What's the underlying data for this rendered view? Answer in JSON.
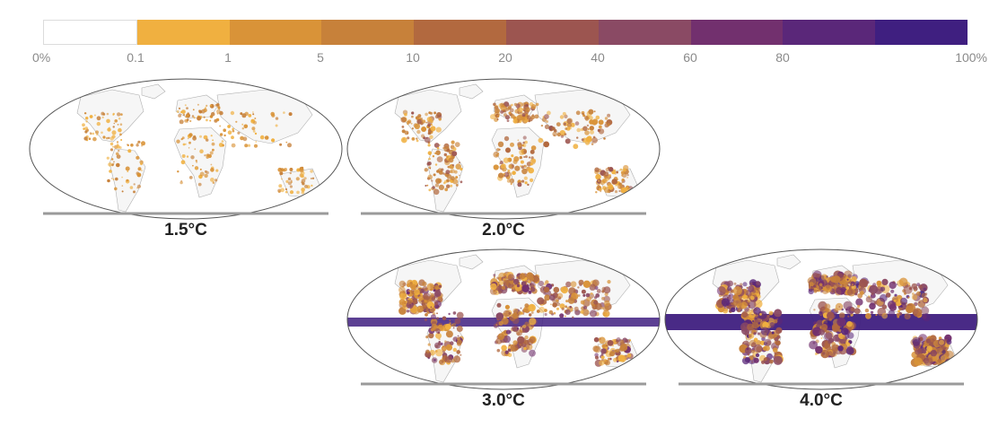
{
  "legend": {
    "colors": [
      "#ffffff",
      "#f0b040",
      "#d99338",
      "#c7813a",
      "#b2693f",
      "#9c5550",
      "#8a4a64",
      "#72306e",
      "#5a2779",
      "#3f1f80"
    ],
    "tick_labels": [
      "0%",
      "0.1",
      "1",
      "5",
      "10",
      "20",
      "40",
      "60",
      "80",
      "100%"
    ]
  },
  "panels": [
    {
      "label": "1.5°C",
      "intensity": 1
    },
    {
      "label": "2.0°C",
      "intensity": 2
    },
    {
      "label": "3.0°C",
      "intensity": 3
    },
    {
      "label": "4.0°C",
      "intensity": 4
    }
  ],
  "colors": {
    "land_light": "#f6f6f6",
    "map_outline": "#555555",
    "baseline": "#9a9a9a",
    "tropical_band": "#3f1f80"
  }
}
